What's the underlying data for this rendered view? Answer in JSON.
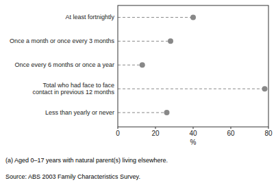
{
  "chart_data": {
    "type": "dot",
    "orientation": "horizontal",
    "categories": [
      "Less than yearly or never",
      "Total who had face to face\ncontact in previous 12 months",
      "Once every 6 months or once a year",
      "Once a month or once every 3 months",
      "At least fortnightly"
    ],
    "values": [
      26,
      78,
      13,
      28,
      40
    ],
    "color": "#888888",
    "line_style": "dashed",
    "marker": "circle",
    "xlim": [
      0,
      80
    ],
    "xticks": [
      0,
      20,
      40,
      60,
      80
    ],
    "xlabel": "%",
    "grid": false,
    "annotations": [
      "(a) Aged 0–17 years with natural parent(s) living elsewhere.",
      "Source: ABS 2003 Family Characteristics Survey."
    ]
  }
}
